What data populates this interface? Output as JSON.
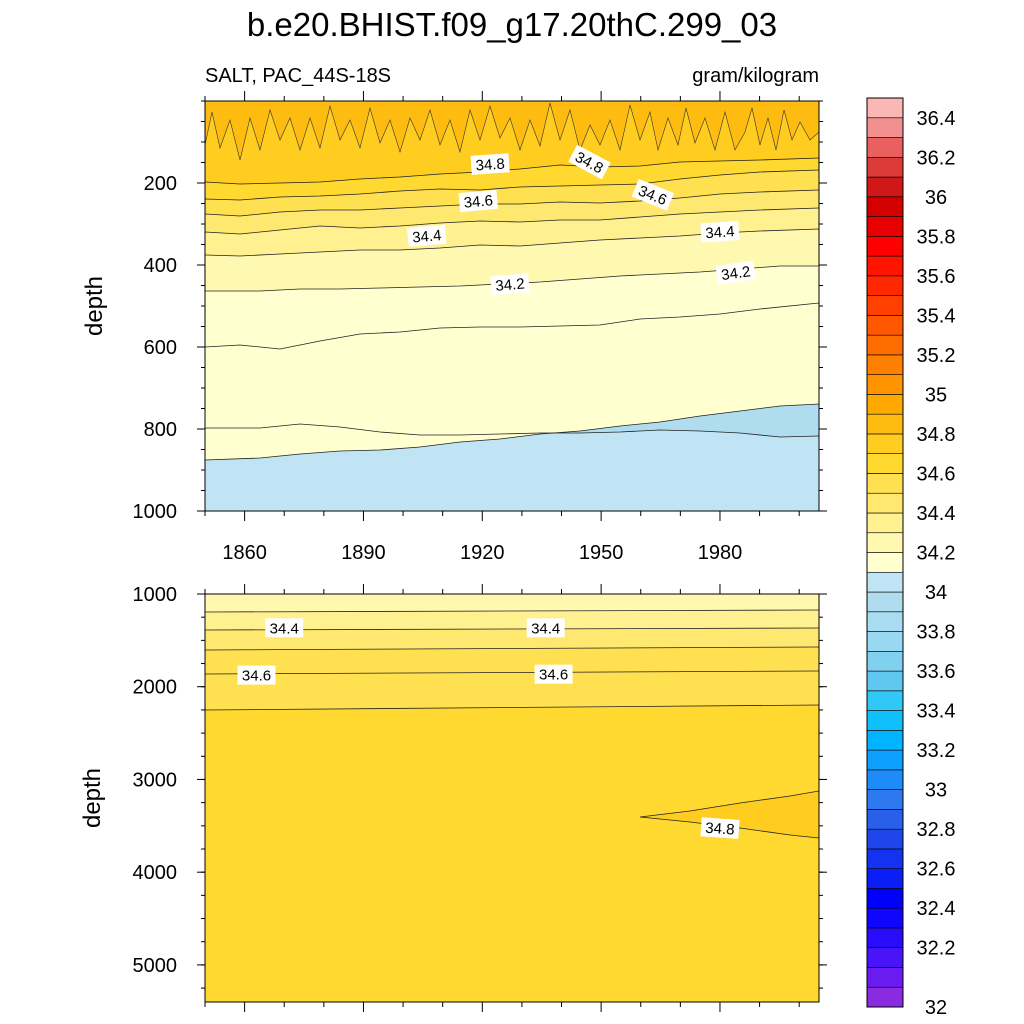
{
  "chart_data": {
    "type": "contour",
    "title": "b.e20.BHIST.f09_g17.20thC.299_03",
    "variable_label": "SALT, PAC_44S-18S",
    "units_label": "gram/kilogram",
    "colorbar": {
      "levels": [
        32,
        32.1,
        32.2,
        32.3,
        32.4,
        32.5,
        32.6,
        32.7,
        32.8,
        32.9,
        33,
        33.1,
        33.2,
        33.3,
        33.4,
        33.5,
        33.6,
        33.7,
        33.8,
        33.9,
        34,
        34.1,
        34.2,
        34.3,
        34.4,
        34.5,
        34.6,
        34.7,
        34.8,
        34.9,
        35,
        35.1,
        35.2,
        35.3,
        35.4,
        35.5,
        35.6,
        35.7,
        35.8,
        35.9,
        36,
        36.1,
        36.2,
        36.3,
        36.4,
        36.5
      ],
      "labels": [
        "32",
        "32.2",
        "32.4",
        "32.6",
        "32.8",
        "33",
        "33.2",
        "33.4",
        "33.6",
        "33.8",
        "34",
        "34.2",
        "34.4",
        "34.6",
        "34.8",
        "35",
        "35.2",
        "35.4",
        "35.6",
        "35.8",
        "36",
        "36.2",
        "36.4"
      ],
      "colors": [
        "#8a2be2",
        "#6a1cf0",
        "#4a14f8",
        "#2a0cfc",
        "#1006fe",
        "#0000ff",
        "#0a1ef8",
        "#1432f0",
        "#1e46ea",
        "#2860ea",
        "#2e78f0",
        "#1e8cf8",
        "#0ea0ff",
        "#00b4ff",
        "#10c0fc",
        "#30c8f4",
        "#60c8f0",
        "#80d0f0",
        "#98d8f0",
        "#a8dcf0",
        "#b0dcf0",
        "#c0e4f4",
        "#ffffd0",
        "#fff8b0",
        "#fff090",
        "#ffe870",
        "#ffe050",
        "#ffd830",
        "#ffcc20",
        "#ffbc10",
        "#ffa800",
        "#ff9400",
        "#ff8000",
        "#ff6c00",
        "#ff5800",
        "#ff4000",
        "#ff2800",
        "#ff1400",
        "#ff0000",
        "#e80000",
        "#d40000",
        "#d01818",
        "#dd3a3a",
        "#e86060",
        "#f29090",
        "#fbb6b6"
      ]
    },
    "upper_panel": {
      "ylabel": "depth",
      "y_range": [
        0,
        1000
      ],
      "y_ticks": [
        200,
        400,
        600,
        800,
        1000
      ],
      "y_tick_labels": [
        "200",
        "400",
        "600",
        "800",
        "1000"
      ],
      "x_range": [
        1850,
        2005
      ],
      "x_ticks": [
        1860,
        1890,
        1920,
        1950,
        1980
      ],
      "x_tick_labels": [
        "1860",
        "1890",
        "1920",
        "1950",
        "1980"
      ],
      "contour_labels": [
        {
          "text": "34.8",
          "x": 1922,
          "depth": 155,
          "angle": -4
        },
        {
          "text": "34.8",
          "x": 1947,
          "depth": 150,
          "angle": 28
        },
        {
          "text": "34.6",
          "x": 1919,
          "depth": 245,
          "angle": -5
        },
        {
          "text": "34.6",
          "x": 1963,
          "depth": 230,
          "angle": 22
        },
        {
          "text": "34.4",
          "x": 1906,
          "depth": 330,
          "angle": -5
        },
        {
          "text": "34.4",
          "x": 1980,
          "depth": 320,
          "angle": -4
        },
        {
          "text": "34.2",
          "x": 1927,
          "depth": 448,
          "angle": -5
        },
        {
          "text": "34.2",
          "x": 1984,
          "depth": 420,
          "angle": -8
        }
      ]
    },
    "lower_panel": {
      "ylabel": "depth",
      "y_range": [
        1000,
        5400
      ],
      "y_ticks": [
        1000,
        2000,
        3000,
        4000,
        5000
      ],
      "y_tick_labels": [
        "1000",
        "2000",
        "3000",
        "4000",
        "5000"
      ],
      "x_range": [
        1850,
        2005
      ],
      "x_ticks": [
        1860,
        1890,
        1920,
        1950,
        1980
      ],
      "contour_labels": [
        {
          "text": "34.4",
          "x": 1870,
          "depth": 1370,
          "angle": 0
        },
        {
          "text": "34.4",
          "x": 1936,
          "depth": 1370,
          "angle": 0
        },
        {
          "text": "34.6",
          "x": 1863,
          "depth": 1880,
          "angle": 0
        },
        {
          "text": "34.6",
          "x": 1938,
          "depth": 1870,
          "angle": 0
        },
        {
          "text": "34.8",
          "x": 1980,
          "depth": 3530,
          "angle": 4
        }
      ]
    }
  }
}
